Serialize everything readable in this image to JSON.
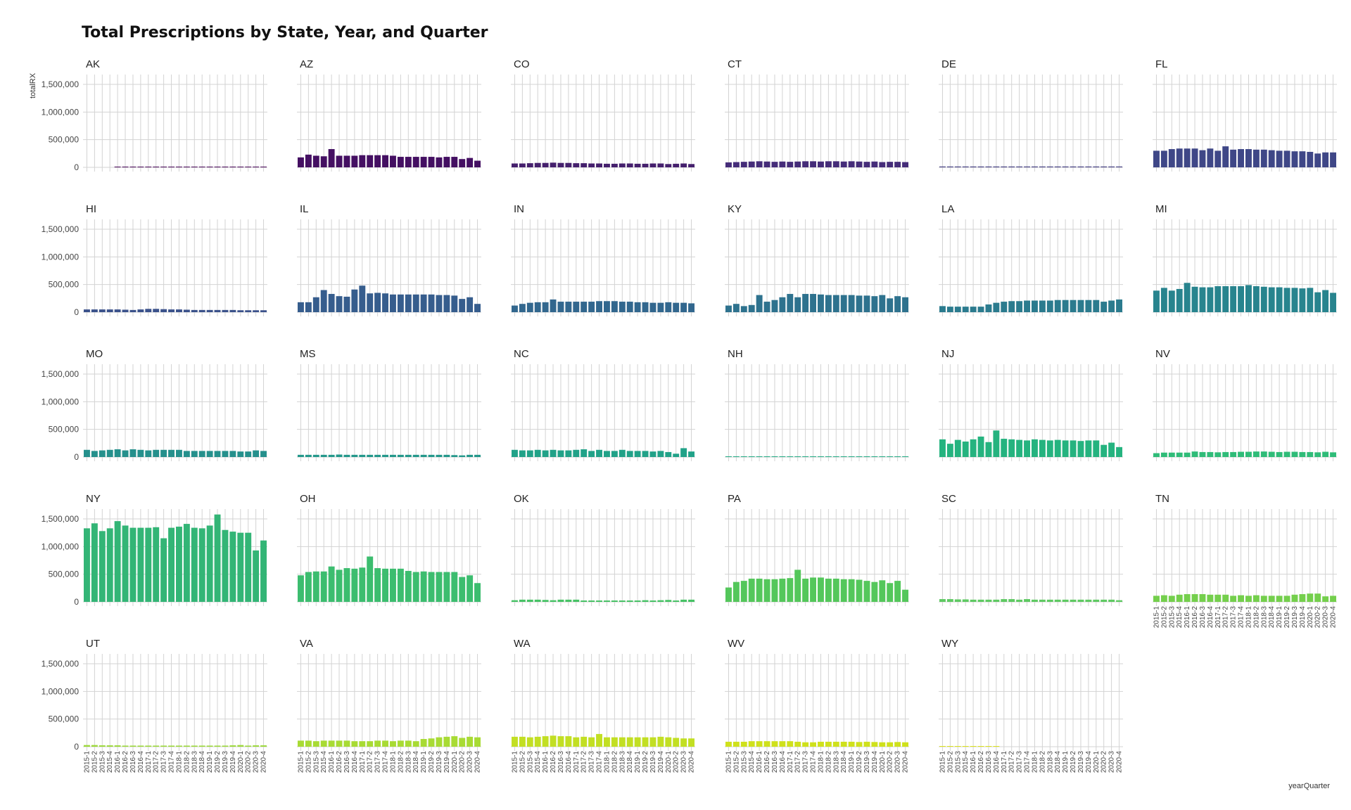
{
  "chart_data": {
    "type": "bar",
    "title": "Total Prescriptions by State, Year, and Quarter",
    "xlabel": "yearQuarter",
    "ylabel": "totalRX",
    "ylim": [
      0,
      1600000
    ],
    "yticks": [
      0,
      500000,
      1000000,
      1500000
    ],
    "ytick_labels": [
      "0",
      "500,000",
      "1,000,000",
      "1,500,000"
    ],
    "grid": true,
    "layout": "facet-grid 5 rows x 6 columns",
    "categories": [
      "2015-1",
      "2015-2",
      "2015-3",
      "2015-4",
      "2016-1",
      "2016-2",
      "2016-3",
      "2016-4",
      "2017-1",
      "2017-2",
      "2017-3",
      "2017-4",
      "2018-1",
      "2018-2",
      "2018-3",
      "2018-4",
      "2019-1",
      "2019-2",
      "2019-3",
      "2019-4",
      "2020-1",
      "2020-2",
      "2020-3",
      "2020-4"
    ],
    "series": [
      {
        "name": "AK",
        "color": "#440154",
        "values": [
          null,
          null,
          null,
          null,
          8000,
          8000,
          8000,
          8000,
          8000,
          8000,
          8000,
          8000,
          8000,
          8000,
          8000,
          8000,
          8000,
          8000,
          8000,
          8000,
          8000,
          8000,
          8000,
          8000
        ]
      },
      {
        "name": "AZ",
        "color": "#440f62",
        "values": [
          180000,
          230000,
          210000,
          200000,
          330000,
          210000,
          210000,
          210000,
          220000,
          220000,
          220000,
          220000,
          210000,
          190000,
          190000,
          190000,
          190000,
          190000,
          180000,
          190000,
          190000,
          150000,
          170000,
          120000
        ]
      },
      {
        "name": "CO",
        "color": "#45206d",
        "values": [
          70000,
          70000,
          75000,
          80000,
          80000,
          85000,
          80000,
          80000,
          75000,
          75000,
          70000,
          70000,
          65000,
          65000,
          70000,
          70000,
          65000,
          65000,
          70000,
          70000,
          60000,
          65000,
          70000,
          60000
        ]
      },
      {
        "name": "CT",
        "color": "#452c79",
        "values": [
          90000,
          95000,
          100000,
          105000,
          110000,
          105000,
          100000,
          105000,
          100000,
          105000,
          110000,
          110000,
          105000,
          110000,
          110000,
          105000,
          110000,
          105000,
          100000,
          105000,
          95000,
          100000,
          100000,
          95000
        ]
      },
      {
        "name": "DE",
        "color": "#413b80",
        "values": [
          15000,
          15000,
          15000,
          15000,
          15000,
          15000,
          15000,
          15000,
          15000,
          15000,
          15000,
          15000,
          15000,
          15000,
          15000,
          15000,
          15000,
          15000,
          15000,
          15000,
          15000,
          15000,
          15000,
          15000
        ]
      },
      {
        "name": "FL",
        "color": "#3f4787",
        "values": [
          300000,
          300000,
          330000,
          340000,
          340000,
          340000,
          310000,
          340000,
          300000,
          380000,
          320000,
          330000,
          330000,
          320000,
          320000,
          310000,
          300000,
          300000,
          290000,
          290000,
          280000,
          250000,
          270000,
          270000
        ]
      },
      {
        "name": "HI",
        "color": "#3b528b",
        "values": [
          50000,
          50000,
          50000,
          50000,
          50000,
          45000,
          40000,
          50000,
          60000,
          60000,
          55000,
          50000,
          50000,
          45000,
          40000,
          40000,
          40000,
          40000,
          40000,
          40000,
          35000,
          35000,
          35000,
          35000
        ]
      },
      {
        "name": "IL",
        "color": "#365d8d",
        "values": [
          180000,
          180000,
          270000,
          400000,
          330000,
          290000,
          280000,
          410000,
          480000,
          340000,
          350000,
          340000,
          320000,
          320000,
          320000,
          320000,
          320000,
          320000,
          310000,
          310000,
          300000,
          240000,
          270000,
          150000
        ]
      },
      {
        "name": "IN",
        "color": "#32678e",
        "values": [
          120000,
          150000,
          170000,
          180000,
          180000,
          230000,
          190000,
          190000,
          190000,
          190000,
          190000,
          200000,
          200000,
          200000,
          190000,
          190000,
          180000,
          180000,
          170000,
          170000,
          180000,
          170000,
          170000,
          160000
        ]
      },
      {
        "name": "KY",
        "color": "#2e728e",
        "values": [
          120000,
          150000,
          110000,
          130000,
          310000,
          190000,
          220000,
          270000,
          330000,
          270000,
          330000,
          330000,
          320000,
          310000,
          310000,
          310000,
          310000,
          300000,
          300000,
          290000,
          310000,
          250000,
          290000,
          270000
        ]
      },
      {
        "name": "LA",
        "color": "#2b7b8e",
        "values": [
          110000,
          100000,
          100000,
          100000,
          100000,
          100000,
          140000,
          170000,
          190000,
          200000,
          200000,
          210000,
          210000,
          210000,
          210000,
          220000,
          220000,
          220000,
          220000,
          220000,
          220000,
          190000,
          210000,
          230000
        ]
      },
      {
        "name": "MI",
        "color": "#28848e",
        "values": [
          390000,
          440000,
          390000,
          420000,
          530000,
          460000,
          450000,
          450000,
          470000,
          470000,
          470000,
          470000,
          490000,
          470000,
          460000,
          450000,
          450000,
          440000,
          440000,
          430000,
          440000,
          360000,
          400000,
          350000
        ]
      },
      {
        "name": "MO",
        "color": "#25908c",
        "values": [
          130000,
          110000,
          120000,
          130000,
          140000,
          120000,
          140000,
          130000,
          120000,
          130000,
          130000,
          130000,
          130000,
          110000,
          110000,
          110000,
          110000,
          110000,
          110000,
          110000,
          100000,
          100000,
          120000,
          110000
        ]
      },
      {
        "name": "MS",
        "color": "#23988b",
        "values": [
          40000,
          40000,
          40000,
          40000,
          40000,
          45000,
          40000,
          40000,
          40000,
          40000,
          40000,
          40000,
          40000,
          40000,
          40000,
          40000,
          40000,
          40000,
          40000,
          40000,
          35000,
          30000,
          40000,
          40000
        ]
      },
      {
        "name": "NC",
        "color": "#21a288",
        "values": [
          130000,
          120000,
          120000,
          130000,
          120000,
          130000,
          120000,
          120000,
          130000,
          140000,
          110000,
          130000,
          110000,
          110000,
          130000,
          110000,
          110000,
          110000,
          100000,
          110000,
          90000,
          60000,
          160000,
          100000
        ]
      },
      {
        "name": "NH",
        "color": "#21ab84",
        "values": [
          10000,
          10000,
          10000,
          10000,
          10000,
          10000,
          10000,
          10000,
          10000,
          10000,
          10000,
          10000,
          10000,
          10000,
          10000,
          10000,
          10000,
          10000,
          10000,
          10000,
          10000,
          10000,
          10000,
          10000
        ]
      },
      {
        "name": "NJ",
        "color": "#25b37f",
        "values": [
          320000,
          240000,
          310000,
          280000,
          320000,
          370000,
          270000,
          480000,
          330000,
          320000,
          310000,
          300000,
          320000,
          310000,
          300000,
          310000,
          300000,
          300000,
          290000,
          300000,
          300000,
          220000,
          260000,
          180000
        ]
      },
      {
        "name": "NV",
        "color": "#2fbc78",
        "values": [
          70000,
          80000,
          80000,
          80000,
          80000,
          100000,
          90000,
          90000,
          85000,
          90000,
          90000,
          95000,
          95000,
          100000,
          100000,
          95000,
          90000,
          95000,
          95000,
          90000,
          90000,
          85000,
          95000,
          85000
        ]
      },
      {
        "name": "NY",
        "color": "#33b576",
        "values": [
          1330000,
          1420000,
          1280000,
          1330000,
          1460000,
          1380000,
          1340000,
          1340000,
          1340000,
          1350000,
          1150000,
          1340000,
          1360000,
          1410000,
          1340000,
          1330000,
          1380000,
          1580000,
          1300000,
          1270000,
          1250000,
          1250000,
          930000,
          1110000
        ]
      },
      {
        "name": "OH",
        "color": "#3cbd6f",
        "values": [
          480000,
          540000,
          550000,
          550000,
          640000,
          580000,
          610000,
          600000,
          620000,
          820000,
          610000,
          600000,
          600000,
          600000,
          560000,
          540000,
          550000,
          540000,
          540000,
          540000,
          540000,
          450000,
          480000,
          340000
        ]
      },
      {
        "name": "OK",
        "color": "#46c265",
        "values": [
          30000,
          40000,
          40000,
          40000,
          35000,
          30000,
          40000,
          40000,
          40000,
          25000,
          25000,
          25000,
          25000,
          25000,
          25000,
          25000,
          25000,
          30000,
          25000,
          30000,
          35000,
          25000,
          40000,
          40000
        ]
      },
      {
        "name": "PA",
        "color": "#54c75b",
        "values": [
          260000,
          360000,
          380000,
          420000,
          420000,
          410000,
          410000,
          420000,
          430000,
          580000,
          420000,
          440000,
          440000,
          420000,
          420000,
          410000,
          410000,
          400000,
          380000,
          360000,
          390000,
          340000,
          380000,
          220000
        ]
      },
      {
        "name": "SC",
        "color": "#5ec962",
        "values": [
          50000,
          50000,
          45000,
          45000,
          40000,
          40000,
          40000,
          40000,
          50000,
          50000,
          40000,
          50000,
          40000,
          40000,
          40000,
          40000,
          40000,
          40000,
          40000,
          40000,
          40000,
          40000,
          40000,
          30000
        ]
      },
      {
        "name": "TN",
        "color": "#74cf4c",
        "values": [
          110000,
          120000,
          110000,
          130000,
          140000,
          140000,
          140000,
          130000,
          130000,
          130000,
          110000,
          120000,
          110000,
          120000,
          110000,
          110000,
          110000,
          110000,
          130000,
          140000,
          150000,
          150000,
          100000,
          110000
        ]
      },
      {
        "name": "UT",
        "color": "#9dd93b",
        "values": [
          30000,
          30000,
          25000,
          25000,
          25000,
          20000,
          20000,
          20000,
          20000,
          20000,
          20000,
          20000,
          20000,
          20000,
          20000,
          20000,
          20000,
          20000,
          20000,
          25000,
          30000,
          20000,
          25000,
          25000
        ]
      },
      {
        "name": "VA",
        "color": "#a8db34",
        "values": [
          110000,
          110000,
          100000,
          110000,
          110000,
          110000,
          110000,
          100000,
          100000,
          100000,
          110000,
          110000,
          100000,
          110000,
          110000,
          100000,
          140000,
          150000,
          170000,
          180000,
          190000,
          160000,
          180000,
          170000
        ]
      },
      {
        "name": "WA",
        "color": "#c2df23",
        "values": [
          180000,
          180000,
          170000,
          180000,
          190000,
          200000,
          190000,
          190000,
          170000,
          180000,
          170000,
          230000,
          170000,
          170000,
          170000,
          170000,
          170000,
          170000,
          170000,
          180000,
          170000,
          160000,
          150000,
          150000
        ]
      },
      {
        "name": "WV",
        "color": "#cfe11c",
        "values": [
          90000,
          90000,
          90000,
          100000,
          100000,
          100000,
          100000,
          100000,
          100000,
          90000,
          80000,
          80000,
          90000,
          90000,
          90000,
          90000,
          90000,
          85000,
          90000,
          85000,
          80000,
          80000,
          85000,
          80000
        ]
      },
      {
        "name": "WY",
        "color": "#dde318",
        "values": [
          10000,
          10000,
          10000,
          10000,
          10000,
          10000,
          10000,
          10000,
          null,
          null,
          null,
          null,
          null,
          null,
          null,
          null,
          null,
          null,
          null,
          null,
          null,
          null,
          null,
          null
        ]
      }
    ]
  }
}
